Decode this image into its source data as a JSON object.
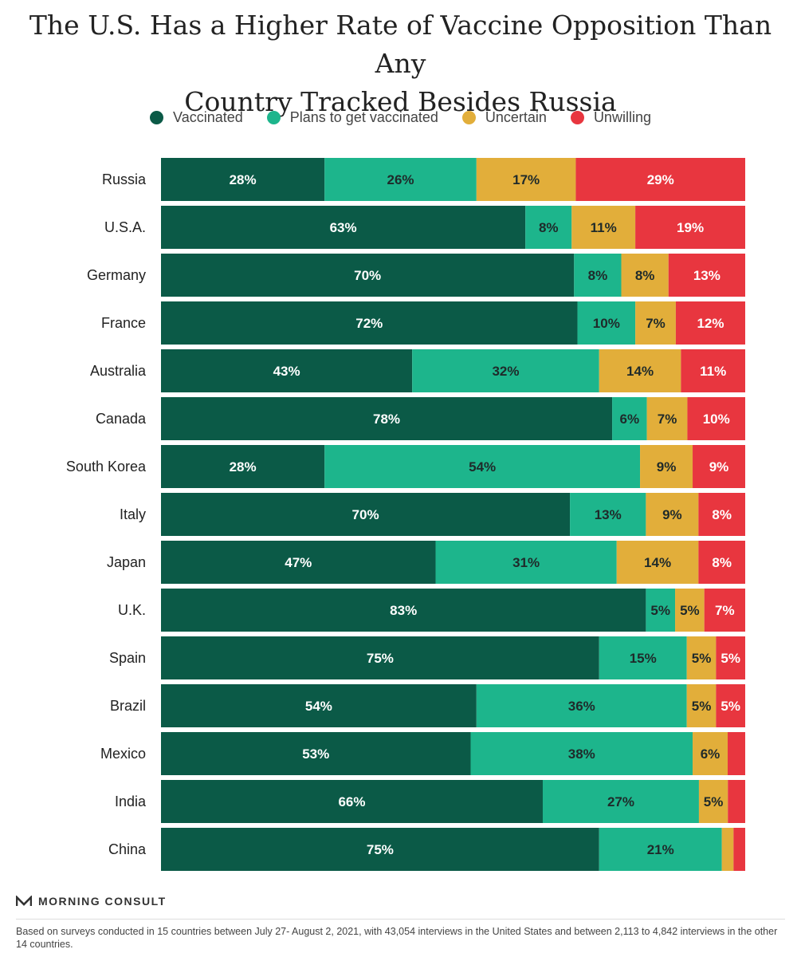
{
  "header": {
    "title_line1": "The U.S. Has a Higher Rate of Vaccine Opposition Than Any",
    "title_line2": "Country Tracked Besides Russia"
  },
  "colors": {
    "vaccinated": "#0b5a47",
    "plans": "#1db58c",
    "uncertain": "#e2ae3a",
    "unwilling": "#e8363f"
  },
  "chart_data": {
    "type": "bar",
    "orientation": "horizontal",
    "stacked": true,
    "categories": [
      "Russia",
      "U.S.A.",
      "Germany",
      "France",
      "Australia",
      "Canada",
      "South Korea",
      "Italy",
      "Japan",
      "U.K.",
      "Spain",
      "Brazil",
      "Mexico",
      "India",
      "China"
    ],
    "series": [
      {
        "name": "Vaccinated",
        "values": [
          28,
          63,
          70,
          72,
          43,
          78,
          28,
          70,
          47,
          83,
          75,
          54,
          53,
          66,
          75
        ]
      },
      {
        "name": "Plans to get vaccinated",
        "values": [
          26,
          8,
          8,
          10,
          32,
          6,
          54,
          13,
          31,
          5,
          15,
          36,
          38,
          27,
          21
        ]
      },
      {
        "name": "Uncertain",
        "values": [
          17,
          11,
          8,
          7,
          14,
          7,
          9,
          9,
          14,
          5,
          5,
          5,
          6,
          5,
          2
        ]
      },
      {
        "name": "Unwilling",
        "values": [
          29,
          19,
          13,
          12,
          11,
          10,
          9,
          8,
          8,
          7,
          5,
          5,
          3,
          3,
          2
        ]
      }
    ],
    "labels": [
      [
        "28%",
        "26%",
        "17%",
        "29%"
      ],
      [
        "63%",
        "8%",
        "11%",
        "19%"
      ],
      [
        "70%",
        "8%",
        "8%",
        "13%"
      ],
      [
        "72%",
        "10%",
        "7%",
        "12%"
      ],
      [
        "43%",
        "32%",
        "14%",
        "11%"
      ],
      [
        "78%",
        "6%",
        "7%",
        "10%"
      ],
      [
        "28%",
        "54%",
        "9%",
        "9%"
      ],
      [
        "70%",
        "13%",
        "9%",
        "8%"
      ],
      [
        "47%",
        "31%",
        "14%",
        "8%"
      ],
      [
        "83%",
        "5%",
        "5%",
        "7%"
      ],
      [
        "75%",
        "15%",
        "5%",
        "5%"
      ],
      [
        "54%",
        "36%",
        "5%",
        "5%"
      ],
      [
        "53%",
        "38%",
        "6%",
        ""
      ],
      [
        "66%",
        "27%",
        "5%",
        ""
      ],
      [
        "75%",
        "21%",
        "",
        ""
      ]
    ],
    "legend": "top",
    "grid": false
  },
  "branding": {
    "logo_text": "MORNING CONSULT"
  },
  "footnote": "Based on surveys conducted in 15 countries between July 27- August 2, 2021, with 43,054 interviews in the United States and between 2,113 to 4,842 interviews in the other 14 countries."
}
